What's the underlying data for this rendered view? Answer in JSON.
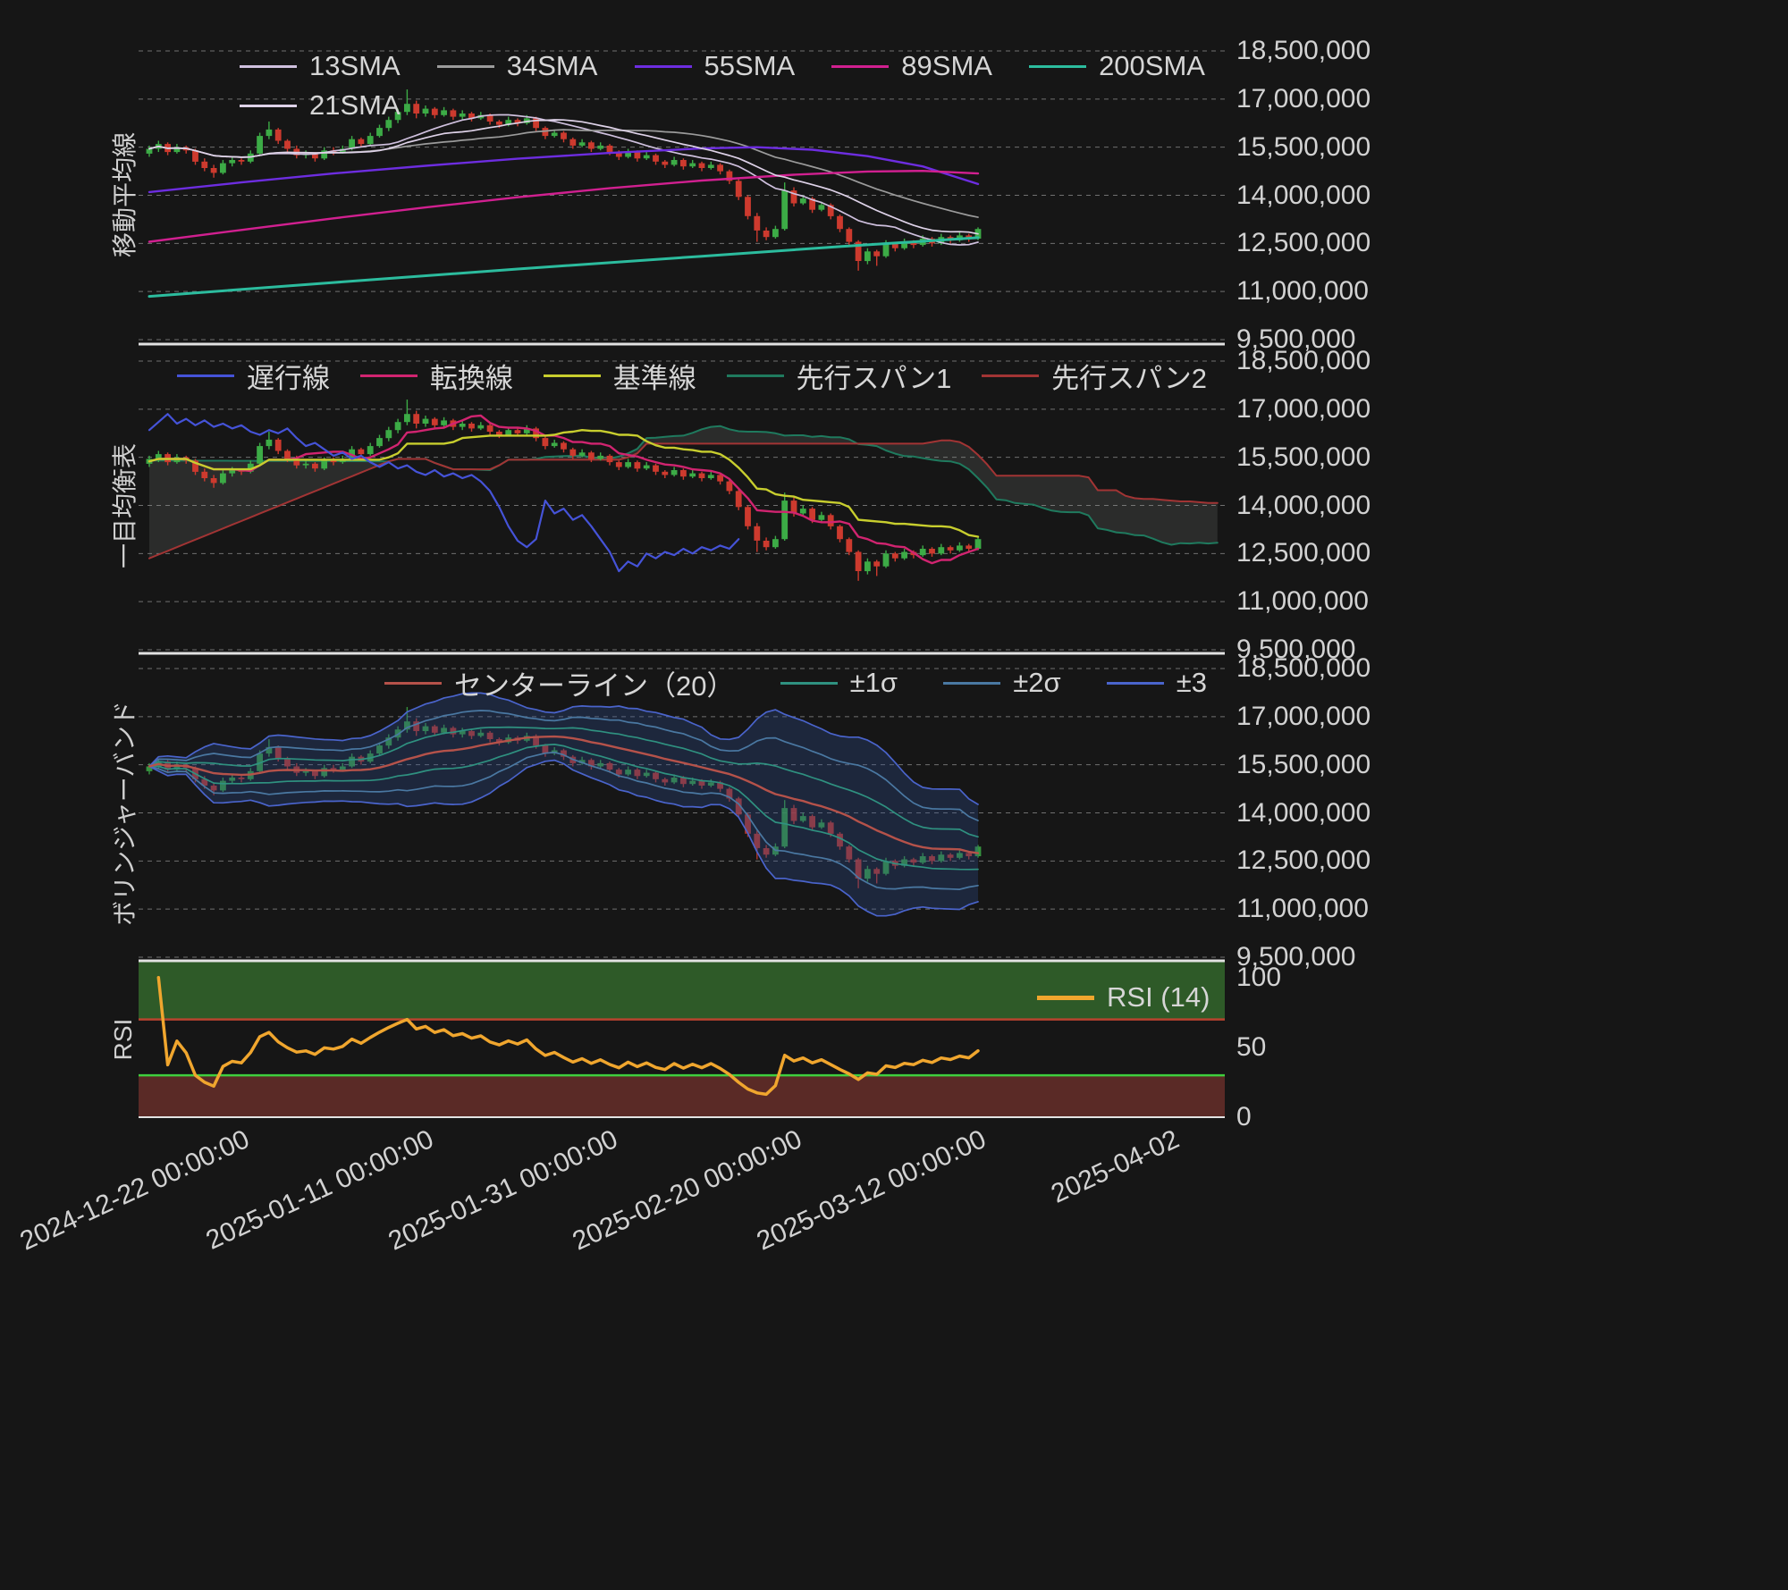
{
  "panels": [
    {
      "axis_label": "移動平均線",
      "legend": [
        {
          "label": "13SMA",
          "color": "#cfc0de",
          "type": "sma",
          "window": 13,
          "width": 1.7
        },
        {
          "label": "34SMA",
          "color": "#9b9b9b",
          "type": "sma",
          "window": 34,
          "width": 1.7
        },
        {
          "label": "55SMA",
          "color": "#6d2de0",
          "type": "anchored",
          "width": 2.4,
          "points": [
            [
              0,
              14.1
            ],
            [
              10,
              14.4
            ],
            [
              20,
              14.68
            ],
            [
              30,
              14.92
            ],
            [
              40,
              15.14
            ],
            [
              50,
              15.32
            ],
            [
              60,
              15.46
            ],
            [
              66,
              15.5
            ],
            [
              72,
              15.42
            ],
            [
              78,
              15.22
            ],
            [
              84,
              14.9
            ],
            [
              90,
              14.35
            ]
          ]
        },
        {
          "label": "89SMA",
          "color": "#d12090",
          "type": "anchored",
          "width": 2.4,
          "points": [
            [
              0,
              12.55
            ],
            [
              10,
              12.92
            ],
            [
              20,
              13.28
            ],
            [
              30,
              13.62
            ],
            [
              40,
              13.94
            ],
            [
              50,
              14.22
            ],
            [
              60,
              14.46
            ],
            [
              70,
              14.64
            ],
            [
              78,
              14.74
            ],
            [
              84,
              14.76
            ],
            [
              90,
              14.68
            ]
          ]
        },
        {
          "label": "200SMA",
          "color": "#2cbc9e",
          "type": "anchored",
          "width": 3,
          "points": [
            [
              0,
              10.85
            ],
            [
              20,
              11.28
            ],
            [
              40,
              11.7
            ],
            [
              60,
              12.1
            ],
            [
              75,
              12.4
            ],
            [
              90,
              12.68
            ]
          ]
        },
        {
          "label": "21SMA",
          "color": "#ded2e8",
          "type": "sma",
          "window": 21,
          "width": 1.7
        }
      ]
    },
    {
      "axis_label": "一目均衡表",
      "legend": [
        {
          "label": "遅行線",
          "color": "#4553d8"
        },
        {
          "label": "転換線",
          "color": "#d12470"
        },
        {
          "label": "基準線",
          "color": "#c8ce2e"
        },
        {
          "label": "先行スパン1",
          "color": "#1f7a5e"
        },
        {
          "label": "先行スパン2",
          "color": "#a23434"
        }
      ]
    },
    {
      "axis_label": "ボリンジャーバンド",
      "legend": [
        {
          "label": "センターライン（20）",
          "color": "#b5524a"
        },
        {
          "label": "±1σ",
          "color": "#2f9180"
        },
        {
          "label": "±2σ",
          "color": "#4a78a2"
        },
        {
          "label": "±3",
          "color": "#4a64cc"
        }
      ]
    },
    {
      "axis_label": "RSI",
      "legend": [
        {
          "label": "RSI (14)",
          "color": "#f0a62e"
        }
      ]
    }
  ],
  "y_axis": {
    "price_ticks": [
      "18,500,000",
      "17,000,000",
      "15,500,000",
      "14,000,000",
      "12,500,000",
      "11,000,000",
      "9,500,000"
    ],
    "rsi_ticks": [
      "100",
      "50",
      "0"
    ],
    "rsi_tick_values": [
      100,
      50,
      0
    ]
  },
  "x_axis": {
    "ticks": [
      {
        "label": "2024-12-22 00:00:00",
        "index": 10
      },
      {
        "label": "2025-01-11 00:00:00",
        "index": 30
      },
      {
        "label": "2025-01-31 00:00:00",
        "index": 50
      },
      {
        "label": "2025-02-20 00:00:00",
        "index": 70
      },
      {
        "label": "2025-03-12 00:00:00",
        "index": 90
      },
      {
        "label": "2025-04-02",
        "index": 111
      }
    ]
  },
  "colors": {
    "background": "#161616",
    "grid": "#707070",
    "separator": "#e2e2e2",
    "text": "#d2d2d2",
    "candle_up": "#3cab46",
    "candle_down": "#cd3a2e",
    "cloud_fill": "rgba(150,156,150,0.17)",
    "bb_fill": "rgba(47,80,150,0.30)",
    "rsi_high_fill": "#2e5a28",
    "rsi_low_fill": "#5a2a26",
    "rsi_high_line": "#b8432f",
    "rsi_low_line": "#3ecf3e"
  },
  "chart_data": {
    "type": "candlestick",
    "value_unit_multiplier": 1000000,
    "y_ticks_m": [
      18.5,
      17.0,
      15.5,
      14.0,
      12.5,
      11.0,
      9.5
    ],
    "ichimoku": {
      "tenkan_period": 9,
      "kijun_period": 26,
      "senkou_b_period": 52,
      "displacement": 26,
      "left_edge": {
        "spanA": 15.4,
        "spanB": 12.35
      }
    },
    "bollinger": {
      "window": 20,
      "sigmas": [
        1,
        2,
        3
      ]
    },
    "rsi": {
      "period": 14,
      "overbought": 70,
      "oversold": 30
    },
    "candles": [
      [
        "2024-12-12",
        15.3,
        15.55,
        15.2,
        15.45
      ],
      [
        "2024-12-13",
        15.45,
        15.7,
        15.35,
        15.6
      ],
      [
        "2024-12-14",
        15.6,
        15.65,
        15.25,
        15.35
      ],
      [
        "2024-12-15",
        15.35,
        15.6,
        15.3,
        15.5
      ],
      [
        "2024-12-16",
        15.5,
        15.55,
        15.3,
        15.4
      ],
      [
        "2024-12-17",
        15.4,
        15.45,
        14.95,
        15.05
      ],
      [
        "2024-12-18",
        15.05,
        15.15,
        14.75,
        14.85
      ],
      [
        "2024-12-19",
        14.85,
        14.95,
        14.55,
        14.7
      ],
      [
        "2024-12-20",
        14.7,
        15.1,
        14.65,
        15.0
      ],
      [
        "2024-12-21",
        15.0,
        15.2,
        14.9,
        15.1
      ],
      [
        "2024-12-22",
        15.1,
        15.15,
        14.95,
        15.05
      ],
      [
        "2024-12-23",
        15.05,
        15.4,
        15.0,
        15.3
      ],
      [
        "2024-12-24",
        15.3,
        15.95,
        15.25,
        15.85
      ],
      [
        "2024-12-25",
        15.85,
        16.3,
        15.75,
        16.05
      ],
      [
        "2024-12-26",
        16.05,
        16.1,
        15.6,
        15.7
      ],
      [
        "2024-12-27",
        15.7,
        15.75,
        15.35,
        15.45
      ],
      [
        "2024-12-28",
        15.45,
        15.55,
        15.15,
        15.25
      ],
      [
        "2024-12-29",
        15.25,
        15.4,
        15.15,
        15.3
      ],
      [
        "2024-12-30",
        15.3,
        15.35,
        15.05,
        15.15
      ],
      [
        "2024-12-31",
        15.15,
        15.5,
        15.1,
        15.4
      ],
      [
        "2025-01-01",
        15.4,
        15.5,
        15.25,
        15.35
      ],
      [
        "2025-01-02",
        15.35,
        15.55,
        15.3,
        15.45
      ],
      [
        "2025-01-03",
        15.45,
        15.85,
        15.4,
        15.75
      ],
      [
        "2025-01-04",
        15.75,
        15.8,
        15.5,
        15.6
      ],
      [
        "2025-01-05",
        15.6,
        15.95,
        15.55,
        15.85
      ],
      [
        "2025-01-06",
        15.85,
        16.2,
        15.8,
        16.1
      ],
      [
        "2025-01-07",
        16.1,
        16.45,
        16.0,
        16.35
      ],
      [
        "2025-01-08",
        16.35,
        16.7,
        16.25,
        16.6
      ],
      [
        "2025-01-09",
        16.6,
        17.3,
        16.5,
        16.85
      ],
      [
        "2025-01-10",
        16.85,
        16.95,
        16.4,
        16.55
      ],
      [
        "2025-01-11",
        16.55,
        16.8,
        16.45,
        16.7
      ],
      [
        "2025-01-12",
        16.7,
        16.75,
        16.4,
        16.5
      ],
      [
        "2025-01-13",
        16.5,
        16.75,
        16.45,
        16.65
      ],
      [
        "2025-01-14",
        16.65,
        16.7,
        16.35,
        16.45
      ],
      [
        "2025-01-15",
        16.45,
        16.65,
        16.35,
        16.55
      ],
      [
        "2025-01-16",
        16.55,
        16.6,
        16.3,
        16.4
      ],
      [
        "2025-01-17",
        16.4,
        16.6,
        16.35,
        16.5
      ],
      [
        "2025-01-18",
        16.5,
        16.55,
        16.2,
        16.3
      ],
      [
        "2025-01-19",
        16.3,
        16.35,
        16.1,
        16.2
      ],
      [
        "2025-01-20",
        16.2,
        16.45,
        16.15,
        16.35
      ],
      [
        "2025-01-21",
        16.35,
        16.4,
        16.15,
        16.25
      ],
      [
        "2025-01-22",
        16.25,
        16.5,
        16.2,
        16.4
      ],
      [
        "2025-01-23",
        16.4,
        16.45,
        16.0,
        16.1
      ],
      [
        "2025-01-24",
        16.1,
        16.15,
        15.75,
        15.85
      ],
      [
        "2025-01-25",
        15.85,
        16.05,
        15.8,
        15.95
      ],
      [
        "2025-01-26",
        15.95,
        16.0,
        15.65,
        15.75
      ],
      [
        "2025-01-27",
        15.75,
        15.8,
        15.45,
        15.55
      ],
      [
        "2025-01-28",
        15.55,
        15.75,
        15.5,
        15.65
      ],
      [
        "2025-01-29",
        15.65,
        15.7,
        15.35,
        15.45
      ],
      [
        "2025-01-30",
        15.45,
        15.65,
        15.4,
        15.55
      ],
      [
        "2025-01-31",
        15.55,
        15.6,
        15.25,
        15.35
      ],
      [
        "2025-02-01",
        15.35,
        15.4,
        15.1,
        15.2
      ],
      [
        "2025-02-02",
        15.2,
        15.45,
        15.15,
        15.35
      ],
      [
        "2025-02-03",
        15.35,
        15.4,
        15.05,
        15.15
      ],
      [
        "2025-02-04",
        15.15,
        15.35,
        15.1,
        15.25
      ],
      [
        "2025-02-05",
        15.25,
        15.3,
        14.95,
        15.05
      ],
      [
        "2025-02-06",
        15.05,
        15.1,
        14.85,
        14.95
      ],
      [
        "2025-02-07",
        14.95,
        15.2,
        14.9,
        15.1
      ],
      [
        "2025-02-08",
        15.1,
        15.15,
        14.8,
        14.9
      ],
      [
        "2025-02-09",
        14.9,
        15.1,
        14.85,
        15.0
      ],
      [
        "2025-02-10",
        15.0,
        15.05,
        14.75,
        14.85
      ],
      [
        "2025-02-11",
        14.85,
        15.05,
        14.8,
        14.95
      ],
      [
        "2025-02-12",
        14.95,
        15.0,
        14.65,
        14.75
      ],
      [
        "2025-02-13",
        14.75,
        14.8,
        14.35,
        14.45
      ],
      [
        "2025-02-14",
        14.45,
        14.5,
        13.85,
        13.95
      ],
      [
        "2025-02-15",
        13.95,
        14.0,
        13.25,
        13.35
      ],
      [
        "2025-02-16",
        13.35,
        13.45,
        12.55,
        12.9
      ],
      [
        "2025-02-17",
        12.9,
        13.0,
        12.6,
        12.7
      ],
      [
        "2025-02-18",
        12.7,
        13.05,
        12.65,
        12.95
      ],
      [
        "2025-02-19",
        12.95,
        14.4,
        12.9,
        14.15
      ],
      [
        "2025-02-20",
        14.15,
        14.25,
        13.65,
        13.75
      ],
      [
        "2025-02-21",
        13.75,
        14.0,
        13.7,
        13.9
      ],
      [
        "2025-02-22",
        13.9,
        13.95,
        13.45,
        13.55
      ],
      [
        "2025-02-23",
        13.55,
        13.8,
        13.5,
        13.7
      ],
      [
        "2025-02-24",
        13.7,
        13.75,
        13.25,
        13.35
      ],
      [
        "2025-02-25",
        13.35,
        13.4,
        12.85,
        12.95
      ],
      [
        "2025-02-26",
        12.95,
        13.0,
        12.45,
        12.55
      ],
      [
        "2025-02-27",
        12.55,
        12.6,
        11.65,
        11.95
      ],
      [
        "2025-02-28",
        11.95,
        12.35,
        11.85,
        12.25
      ],
      [
        "2025-03-01",
        12.25,
        12.3,
        11.8,
        12.1
      ],
      [
        "2025-03-02",
        12.1,
        12.6,
        12.05,
        12.5
      ],
      [
        "2025-03-03",
        12.5,
        12.55,
        12.25,
        12.35
      ],
      [
        "2025-03-04",
        12.35,
        12.65,
        12.3,
        12.55
      ],
      [
        "2025-03-05",
        12.55,
        12.6,
        12.35,
        12.45
      ],
      [
        "2025-03-06",
        12.45,
        12.75,
        12.4,
        12.65
      ],
      [
        "2025-03-07",
        12.65,
        12.7,
        12.4,
        12.5
      ],
      [
        "2025-03-08",
        12.5,
        12.8,
        12.45,
        12.7
      ],
      [
        "2025-03-09",
        12.7,
        12.75,
        12.5,
        12.6
      ],
      [
        "2025-03-10",
        12.6,
        12.85,
        12.55,
        12.75
      ],
      [
        "2025-03-11",
        12.75,
        12.8,
        12.55,
        12.65
      ],
      [
        "2025-03-12",
        12.65,
        13.0,
        12.6,
        12.95
      ]
    ]
  }
}
